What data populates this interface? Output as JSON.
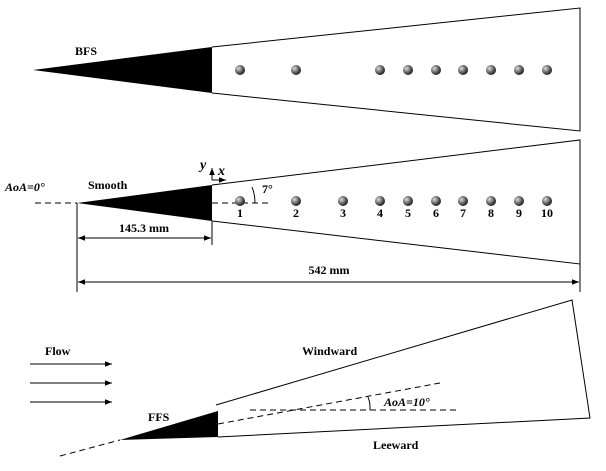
{
  "top": {
    "label": "BFS"
  },
  "middle": {
    "label": "Smooth",
    "aoa_label": "AoA=0°",
    "axis_y": "y",
    "axis_x": "x",
    "half_angle": "7°",
    "probe_labels": [
      "1",
      "2",
      "3",
      "4",
      "5",
      "6",
      "7",
      "8",
      "9",
      "10"
    ],
    "dim_nose": "145.3 mm",
    "dim_total": "542 mm"
  },
  "bottom": {
    "flow_label": "Flow",
    "label": "FFS",
    "windward": "Windward",
    "leeward": "Leeward",
    "aoa_label": "AoA=10°"
  }
}
